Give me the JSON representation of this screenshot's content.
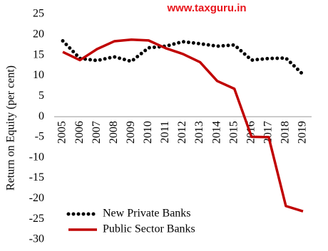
{
  "chart_data": {
    "type": "line",
    "watermark": "www.taxguru.in",
    "y_label": "Return on Equity (per cent)",
    "categories": [
      "2005",
      "2006",
      "2007",
      "2008",
      "2009",
      "2010",
      "2011",
      "2012",
      "2013",
      "2014",
      "2015",
      "2016",
      "2017",
      "2018",
      "2019"
    ],
    "series": [
      {
        "name": "New Private Banks",
        "color": "#000000",
        "style": "dotted",
        "values": [
          18.5,
          14.2,
          13.7,
          14.6,
          13.5,
          16.8,
          17.2,
          18.3,
          17.8,
          17.2,
          17.5,
          13.8,
          14.2,
          14.3,
          10.3
        ]
      },
      {
        "name": "Public Sector Banks",
        "color": "#c00000",
        "style": "solid",
        "values": [
          15.8,
          13.8,
          16.5,
          18.4,
          18.8,
          18.6,
          16.7,
          15.3,
          13.3,
          8.7,
          6.8,
          -4.9,
          -5.0,
          -21.8,
          -23.1
        ]
      }
    ],
    "ylim": [
      -30,
      25
    ],
    "yticks": [
      -30,
      -25,
      -20,
      -15,
      -10,
      -5,
      0,
      5,
      10,
      15,
      20,
      25
    ],
    "grid": false,
    "legend": "lower left"
  }
}
